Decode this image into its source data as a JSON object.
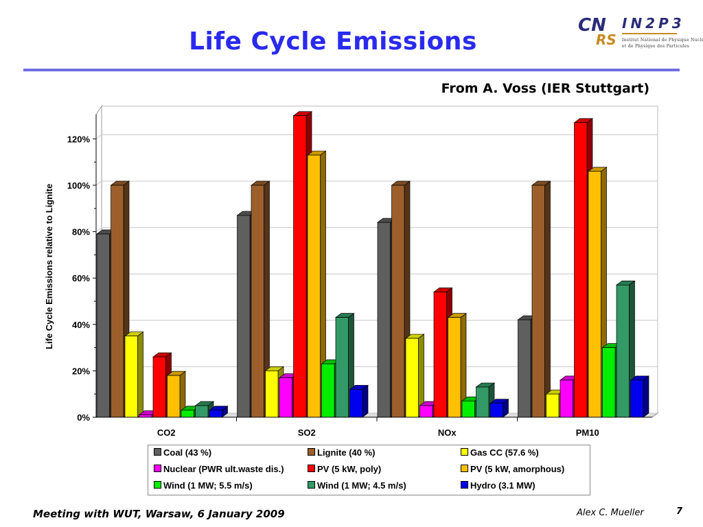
{
  "slide": {
    "title": "Life Cycle Emissions",
    "source": "From A. Voss (IER Stuttgart)",
    "footer": "Meeting with WUT, Warsaw, 6 January 2009",
    "author": "Alex C. Mueller",
    "page_number": "7"
  },
  "logo": {
    "cnrs_part1": "CN",
    "cnrs_part2": "RS",
    "in2p3": "IN2P3",
    "subtitle_line1": "Institut National de Physique Nucléaire",
    "subtitle_line2": "et de Physique des Particules"
  },
  "chart_data": {
    "type": "bar",
    "style": "3d-clustered",
    "ylabel": "Life Cycle Emissions  relative to Lignite",
    "xlabel": "",
    "ylim": [
      0,
      130
    ],
    "yticks": [
      0,
      20,
      40,
      60,
      80,
      100,
      120
    ],
    "ytick_labels": [
      "0%",
      "20%",
      "40%",
      "60%",
      "80%",
      "100%",
      "120%"
    ],
    "categories": [
      "CO2",
      "SO2",
      "NOx",
      "PM10"
    ],
    "grid": true,
    "legend_position": "bottom",
    "series": [
      {
        "name": "Coal (43 %)",
        "color": "#5f5f5f",
        "values": [
          79,
          87,
          84,
          42
        ]
      },
      {
        "name": "Lignite (40 %)",
        "color": "#9c5f2c",
        "values": [
          100,
          100,
          100,
          100
        ]
      },
      {
        "name": "Gas CC (57.6 %)",
        "color": "#ffff00",
        "values": [
          35,
          20,
          34,
          10
        ]
      },
      {
        "name": "Nuclear (PWR ult.waste dis.)",
        "color": "#ff00ff",
        "values": [
          1,
          17,
          5,
          16
        ]
      },
      {
        "name": "PV (5 kW, poly)",
        "color": "#ff0000",
        "values": [
          26,
          130,
          54,
          127
        ]
      },
      {
        "name": "PV (5 kW, amorphous)",
        "color": "#ffc000",
        "values": [
          18,
          113,
          43,
          106
        ]
      },
      {
        "name": "Wind (1 MW; 5.5 m/s)",
        "color": "#00ee00",
        "values": [
          3,
          23,
          7,
          30
        ]
      },
      {
        "name": "Wind (1 MW; 4.5 m/s)",
        "color": "#339966",
        "values": [
          5,
          43,
          13,
          57
        ]
      },
      {
        "name": "Hydro (3.1 MW)",
        "color": "#0000ee",
        "values": [
          3,
          12,
          6,
          16
        ]
      }
    ]
  }
}
